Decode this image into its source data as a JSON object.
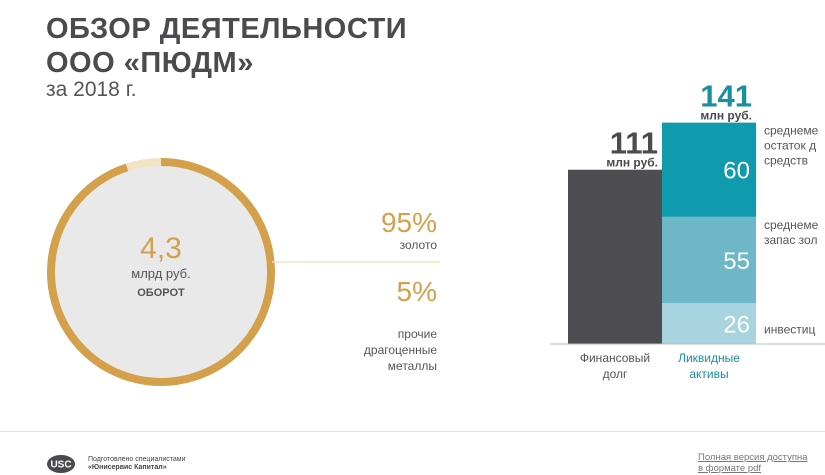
{
  "header": {
    "title_line1": "ОБЗОР ДЕЯТЕЛЬНОСТИ",
    "title_line2": "ООО «ПЮДМ»",
    "subtitle": "за 2018 г."
  },
  "colors": {
    "gold": "#d4a04c",
    "ring_light": "#f1e3c6",
    "circle_fill": "#e9e9e9",
    "dark": "#4a4a4f",
    "text_gray": "#555559",
    "bar_dark": "#4d4d52",
    "teal_dark": "#109aad",
    "teal_mid": "#6eb7c6",
    "teal_light": "#a7d4de",
    "teal_text": "#1a8fa0"
  },
  "chart_data": [
    {
      "type": "pie",
      "center_value": "4,3",
      "center_unit": "млрд руб.",
      "center_label": "ОБОРОТ",
      "slices": [
        {
          "value": 95,
          "value_label": "95%",
          "label": "золото"
        },
        {
          "value": 5,
          "value_label": "5%",
          "label_lines": [
            "прочие",
            "драгоценные",
            "металлы"
          ]
        }
      ]
    },
    {
      "type": "bar",
      "categories": [
        {
          "line1": "Финансовый",
          "line2": "долг"
        },
        {
          "line1": "Ликвидные",
          "line2": "активы"
        }
      ],
      "unit": "млн руб.",
      "totals": [
        "111",
        "141"
      ],
      "series": [
        {
          "values": [
            111,
            0
          ],
          "value_label": ""
        },
        {
          "values": [
            0,
            26
          ],
          "value_label": "26",
          "label_lines": [
            "инвестиц"
          ]
        },
        {
          "values": [
            0,
            55
          ],
          "value_label": "55",
          "label_lines": [
            "среднеме",
            "запас зол"
          ]
        },
        {
          "values": [
            0,
            60
          ],
          "value_label": "60",
          "label_lines": [
            "среднеме",
            "остаток д",
            "средств"
          ]
        }
      ],
      "ylim": [
        0,
        141
      ]
    }
  ],
  "footer": {
    "logo_text": "USC",
    "credit_line1": "Подготовлено специалистами",
    "credit_line2": "«Юнисервис Капитал»",
    "full_version_line1": "Полная версия доступна",
    "full_version_line2": "в формате pdf"
  }
}
